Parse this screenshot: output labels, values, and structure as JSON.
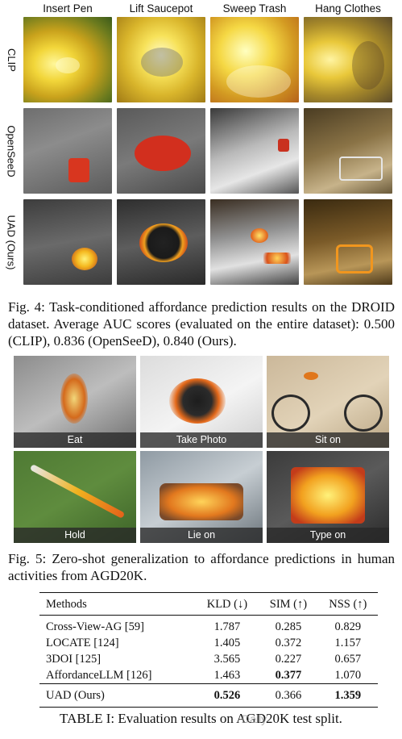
{
  "fig4": {
    "columns": [
      "Insert Pen",
      "Lift Saucepot",
      "Sweep Trash",
      "Hang Clothes"
    ],
    "rows": [
      "CLIP",
      "OpenSeeD",
      "UAD (Ours)"
    ],
    "caption": "Fig. 4: Task-conditioned affordance prediction results on the DROID dataset. Average AUC scores (evaluated on the entire dataset): 0.500 (CLIP), 0.836 (OpenSeeD), 0.840 (Ours)."
  },
  "fig5": {
    "labels": [
      "Eat",
      "Take Photo",
      "Sit on",
      "Hold",
      "Lie on",
      "Type on"
    ],
    "caption": "Fig. 5: Zero-shot generalization to affordance predictions in human activities from AGD20K."
  },
  "table": {
    "headers": [
      "Methods",
      "KLD (↓)",
      "SIM (↑)",
      "NSS (↑)"
    ],
    "rows": [
      {
        "method": "Cross-View-AG [59]",
        "kld": "1.787",
        "sim": "0.285",
        "nss": "0.829"
      },
      {
        "method": "LOCATE [124]",
        "kld": "1.405",
        "sim": "0.372",
        "nss": "1.157"
      },
      {
        "method": "3DOI [125]",
        "kld": "3.565",
        "sim": "0.227",
        "nss": "0.657"
      },
      {
        "method": "AffordanceLLM [126]",
        "kld": "1.463",
        "sim": "0.377",
        "nss": "1.070"
      }
    ],
    "ours": {
      "method": "UAD (Ours)",
      "kld": "0.526",
      "sim": "0.366",
      "nss": "1.359"
    },
    "caption": "TABLE I: Evaluation results on AGD20K test split."
  },
  "watermark": "Daily"
}
